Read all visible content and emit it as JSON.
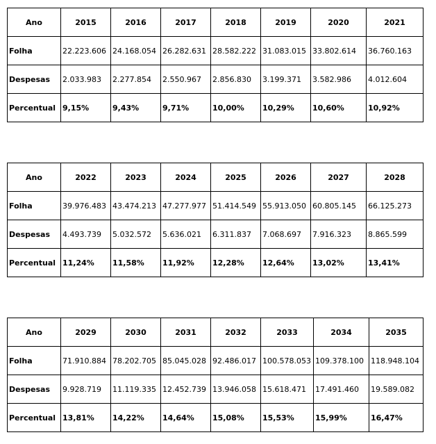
{
  "tables": [
    {
      "header": {
        "label": "Ano",
        "years": [
          "2015",
          "2016",
          "2017",
          "2018",
          "2019",
          "2020",
          "2021"
        ]
      },
      "rows": [
        {
          "label": "Folha",
          "values": [
            "22.223.606",
            "24.168.054",
            "26.282.631",
            "28.582.222",
            "31.083.015",
            "33.802.614",
            "36.760.163"
          ]
        },
        {
          "label": "Despesas",
          "values": [
            "2.033.983",
            "2.277.854",
            "2.550.967",
            "2.856.830",
            "3.199.371",
            "3.582.986",
            "4.012.604"
          ]
        },
        {
          "label": "Percentual",
          "values": [
            "9,15%",
            "9,43%",
            "9,71%",
            "10,00%",
            "10,29%",
            "10,60%",
            "10,92%"
          ]
        }
      ]
    },
    {
      "header": {
        "label": "Ano",
        "years": [
          "2022",
          "2023",
          "2024",
          "2025",
          "2026",
          "2027",
          "2028"
        ]
      },
      "rows": [
        {
          "label": "Folha",
          "values": [
            "39.976.483",
            "43.474.213",
            "47.277.977",
            "51.414.549",
            "55.913.050",
            "60.805.145",
            "66.125.273"
          ]
        },
        {
          "label": "Despesas",
          "values": [
            "4.493.739",
            "5.032.572",
            "5.636.021",
            "6.311.837",
            "7.068.697",
            "7.916.323",
            "8.865.599"
          ]
        },
        {
          "label": "Percentual",
          "values": [
            "11,24%",
            "11,58%",
            "11,92%",
            "12,28%",
            "12,64%",
            "13,02%",
            "13,41%"
          ]
        }
      ]
    },
    {
      "header": {
        "label": "Ano",
        "years": [
          "2029",
          "2030",
          "2031",
          "2032",
          "2033",
          "2034",
          "2035"
        ]
      },
      "rows": [
        {
          "label": "Folha",
          "values": [
            "71.910.884",
            "78.202.705",
            "85.045.028",
            "92.486.017",
            "100.578.053",
            "109.378.100",
            "118.948.104"
          ]
        },
        {
          "label": "Despesas",
          "values": [
            "9.928.719",
            "11.119.335",
            "12.452.739",
            "13.946.058",
            "15.618.471",
            "17.491.460",
            "19.589.082"
          ]
        },
        {
          "label": "Percentual",
          "values": [
            "13,81%",
            "14,22%",
            "14,64%",
            "15,08%",
            "15,53%",
            "15,99%",
            "16,47%"
          ]
        }
      ]
    }
  ]
}
